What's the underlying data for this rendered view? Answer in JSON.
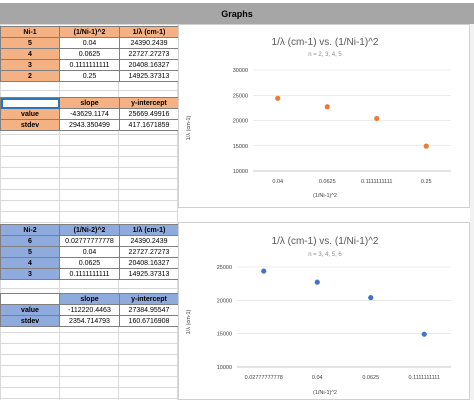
{
  "header": {
    "title": "Graphs"
  },
  "table1": {
    "headers": [
      "Ni-1",
      "(1/Ni-1)^2",
      "1/λ (cm-1)"
    ],
    "rows": [
      [
        "5",
        "0.04",
        "24390.2439"
      ],
      [
        "4",
        "0.0625",
        "22727.27273"
      ],
      [
        "3",
        "0.1111111111",
        "20408.16327"
      ],
      [
        "2",
        "0.25",
        "14925.37313"
      ]
    ]
  },
  "stats1": {
    "headers": [
      "",
      "slope",
      "y-intercept"
    ],
    "rows": [
      [
        "value",
        "-43629.1174",
        "25669.49916"
      ],
      [
        "stdev",
        "2943.350499",
        "417.1671859"
      ]
    ]
  },
  "table2": {
    "headers": [
      "Ni-2",
      "(1/Ni-2)^2",
      "1/λ (cm-1)"
    ],
    "rows": [
      [
        "6",
        "0.02777777778",
        "24390.2439"
      ],
      [
        "5",
        "0.04",
        "22727.27273"
      ],
      [
        "4",
        "0.0625",
        "20408.16327"
      ],
      [
        "3",
        "0.1111111111",
        "14925.37313"
      ]
    ]
  },
  "stats2": {
    "headers": [
      "",
      "slope",
      "y-intercept"
    ],
    "rows": [
      [
        "value",
        "-112220.4463",
        "27384.95547"
      ],
      [
        "stdev",
        "2354.714793",
        "160.6716908"
      ]
    ]
  },
  "chart_data": [
    {
      "type": "scatter",
      "title": "1/λ (cm-1) vs. (1/Ni-1)^2",
      "subtitle": "n = 2, 3, 4, 5",
      "xlabel": "(1/Ni-1)^2",
      "ylabel": "1/λ (cm-1)",
      "categories": [
        "0.04",
        "0.0625",
        "0.1111111111",
        "0.25"
      ],
      "values": [
        24390.2439,
        22727.27273,
        20408.16327,
        14925.37313
      ],
      "ylim": [
        10000,
        30000
      ],
      "yticks": [
        "30000",
        "25000",
        "20000",
        "15000",
        "10000"
      ],
      "color": "#ed7d31",
      "grid": true
    },
    {
      "type": "scatter",
      "title": "1/λ (cm-1) vs. (1/Ni-1)^2",
      "subtitle": "n = 3, 4, 5, 6",
      "xlabel": "(1/Ni-1)^2",
      "ylabel": "1/λ (cm-1)",
      "categories": [
        "0.02777777778",
        "0.04",
        "0.0625",
        "0.1111111111"
      ],
      "values": [
        24390.2439,
        22727.27273,
        20408.16327,
        14925.37313
      ],
      "ylim": [
        10000,
        25000
      ],
      "yticks": [
        "25000",
        "20000",
        "15000",
        "10000"
      ],
      "color": "#4472c4",
      "grid": true
    }
  ]
}
